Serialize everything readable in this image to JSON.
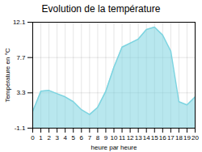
{
  "chart_data": {
    "type": "area",
    "title": "Evolution de la température",
    "xlabel": "heure par heure",
    "ylabel": "Température en °C",
    "x": [
      0,
      1,
      2,
      3,
      4,
      5,
      6,
      7,
      8,
      9,
      10,
      11,
      12,
      13,
      14,
      15,
      16,
      17,
      18,
      19,
      20
    ],
    "values": [
      1.0,
      3.5,
      3.6,
      3.2,
      2.8,
      2.2,
      1.2,
      0.6,
      1.5,
      3.5,
      6.5,
      9.0,
      9.5,
      10.0,
      11.2,
      11.5,
      10.5,
      8.5,
      2.2,
      1.8,
      2.8
    ],
    "color": "#7dd4e0",
    "xlim": [
      0,
      20
    ],
    "xticks": [
      0,
      1,
      2,
      3,
      4,
      5,
      6,
      7,
      8,
      9,
      10,
      11,
      12,
      13,
      14,
      15,
      16,
      17,
      18,
      19,
      20
    ],
    "ylim": [
      -1.1,
      12.1
    ],
    "yticks": [
      -1.1,
      3.3,
      7.7,
      12.1
    ],
    "grid": true
  }
}
